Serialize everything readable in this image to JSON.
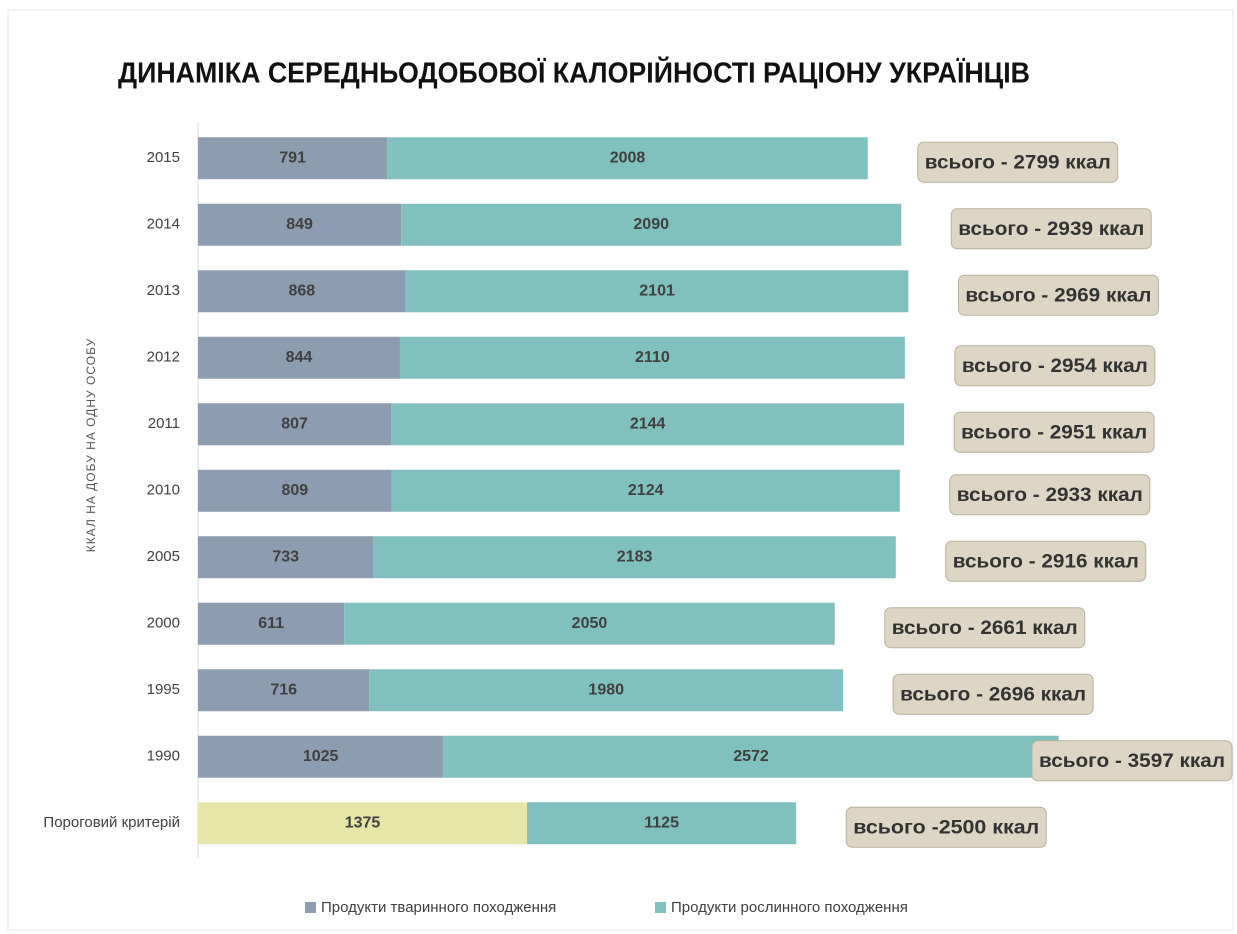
{
  "chart_data": {
    "type": "stacked-barh",
    "title": "ДИНАМІКА СЕРЕДНЬОДОБОВОЇ КАЛОРІЙНОСТІ РАЦІОНУ УКРАЇНЦІВ",
    "y_label": "ККАЛ НА ДОБУ НА ОДНУ ОСОБУ",
    "categories": [
      "2015",
      "2014",
      "2013",
      "2012",
      "2011",
      "2010",
      "2005",
      "2000",
      "1995",
      "1990",
      "Пороговий критерій"
    ],
    "series": [
      {
        "name": "Продукти тваринного походження",
        "color": "#8c9cb1",
        "colors": [
          "#8c9cb1",
          "#8c9cb1",
          "#8c9cb1",
          "#8c9cb1",
          "#8c9cb1",
          "#8c9cb1",
          "#8c9cb1",
          "#8c9cb1",
          "#8c9cb1",
          "#8c9cb1",
          "#e6e6a9"
        ],
        "values": [
          791,
          849,
          868,
          844,
          807,
          809,
          733,
          611,
          716,
          1025,
          1375
        ]
      },
      {
        "name": "Продукти рослинного походження",
        "color": "#80c0bf",
        "values": [
          2008,
          2090,
          2101,
          2110,
          2144,
          2124,
          2183,
          2050,
          1980,
          2572,
          1125
        ]
      }
    ],
    "annotations": [
      "всього - 2799 ккал",
      "всього - 2939 ккал",
      "всього - 2969 ккал",
      "всього - 2954 ккал",
      "всього - 2951 ккал",
      "всього - 2933 ккал",
      "всього - 2916 ккал",
      "всього - 2661 ккал",
      "всього - 2696 ккал",
      "всього - 3597 ккал",
      "всього -2500 ккал"
    ],
    "xlim": [
      0,
      4200
    ],
    "legend": "bottom"
  }
}
